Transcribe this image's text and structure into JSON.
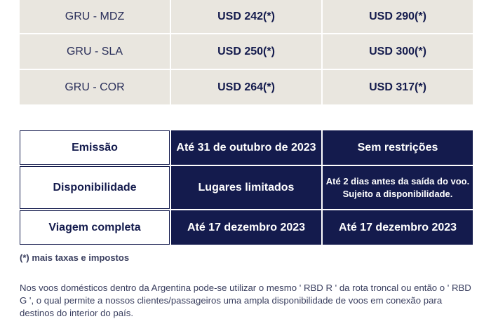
{
  "fares": [
    {
      "route": "GRU - MDZ",
      "price_a": "USD 242(*)",
      "price_b": "USD 290(*)"
    },
    {
      "route": "GRU - SLA",
      "price_a": "USD 250(*)",
      "price_b": "USD 300(*)"
    },
    {
      "route": "GRU - COR",
      "price_a": "USD 264(*)",
      "price_b": "USD 317(*)"
    }
  ],
  "conditions": {
    "emissao": {
      "label": "Emissão",
      "value_a": "Até 31 de outubro de 2023",
      "value_b": "Sem restrições"
    },
    "disponibilidade": {
      "label": "Disponibilidade",
      "value_a": "Lugares limitados",
      "value_b_line1": "Até 2 dias antes da saída do voo.",
      "value_b_line2": "Sujeito a disponibilidade."
    },
    "viagem": {
      "label": "Viagem completa",
      "value_a": "Até 17 dezembro 2023",
      "value_b": "Até 17 dezembro 2023"
    }
  },
  "footnote": "(*) mais taxas e impostos",
  "paragraph": "Nos voos domésticos dentro da Argentina pode-se utilizar o mesmo ' RBD R ' da rota troncal ou então o ' RBD G ', o qual permite a nossos clientes/passageiros uma ampla disponibilidade de voos em conexão para destinos do interior do país."
}
